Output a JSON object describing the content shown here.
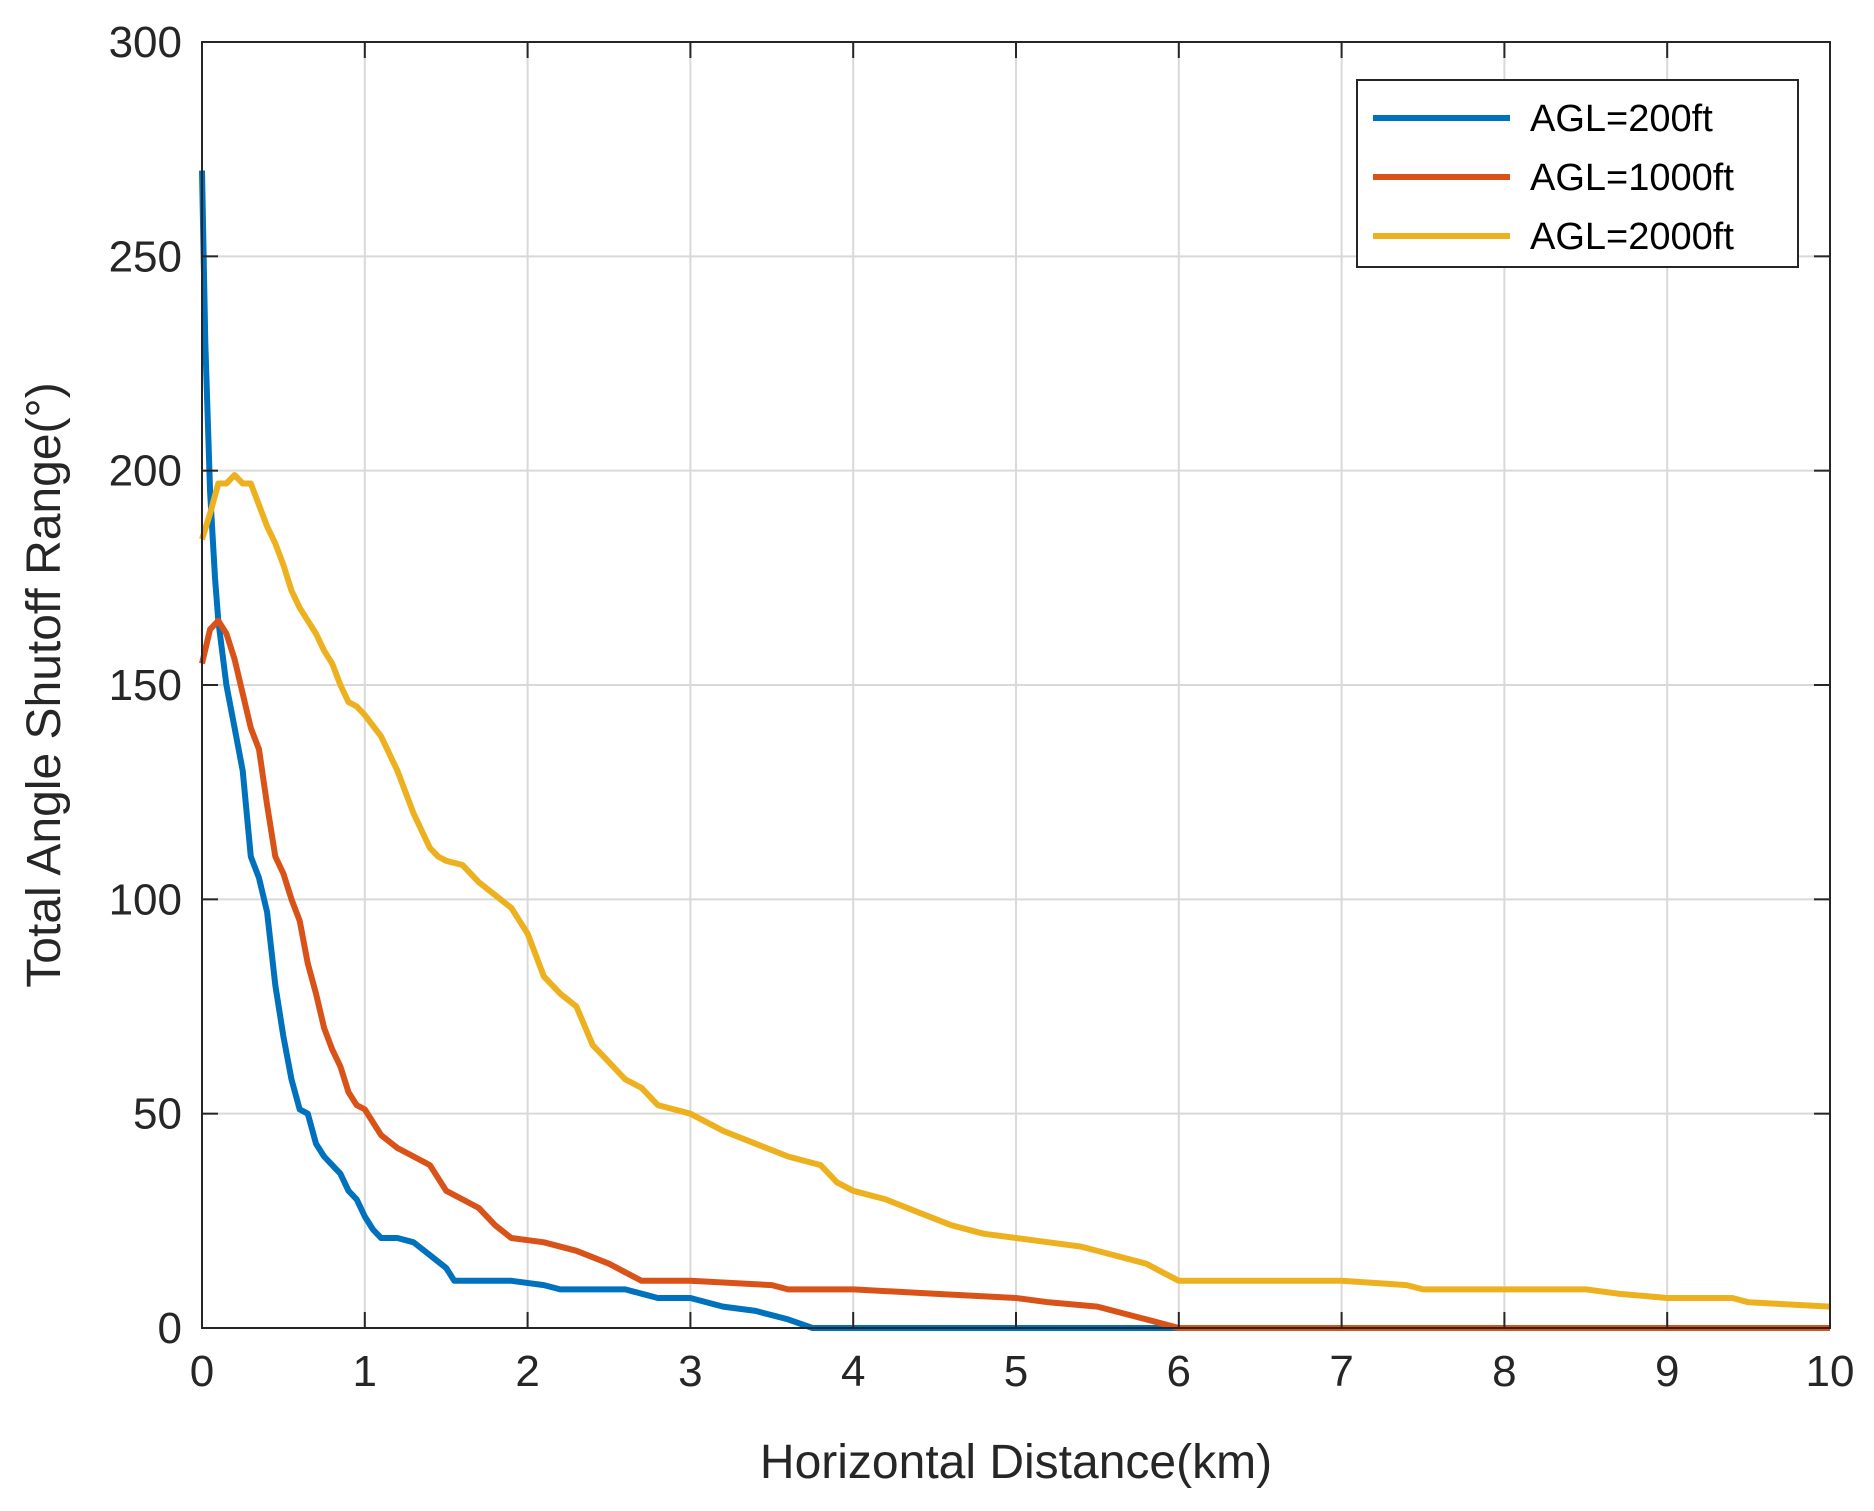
{
  "chart_data": {
    "type": "line",
    "title": "",
    "xlabel": "Horizontal Distance(km)",
    "ylabel": "Total  Angle Shutoff Range(°)",
    "xlim": [
      0,
      10
    ],
    "ylim": [
      0,
      300
    ],
    "xticks": [
      0,
      1,
      2,
      3,
      4,
      5,
      6,
      7,
      8,
      9,
      10
    ],
    "yticks": [
      0,
      50,
      100,
      150,
      200,
      250,
      300
    ],
    "grid": true,
    "legend_position": "top-right",
    "series": [
      {
        "name": "AGL=200ft",
        "color": "#0072BD",
        "x": [
          0,
          0.02,
          0.05,
          0.08,
          0.1,
          0.15,
          0.2,
          0.25,
          0.3,
          0.35,
          0.4,
          0.45,
          0.5,
          0.55,
          0.6,
          0.65,
          0.7,
          0.75,
          0.8,
          0.85,
          0.9,
          0.95,
          1.0,
          1.05,
          1.1,
          1.2,
          1.3,
          1.4,
          1.5,
          1.55,
          1.7,
          1.9,
          2.1,
          2.2,
          2.4,
          2.6,
          2.7,
          2.8,
          3.0,
          3.2,
          3.4,
          3.6,
          3.75,
          3.9,
          4.5,
          5.0,
          5.8,
          6.5,
          7.5,
          8.5,
          10
        ],
        "values": [
          270,
          230,
          195,
          175,
          165,
          150,
          140,
          130,
          110,
          105,
          97,
          80,
          68,
          58,
          51,
          50,
          43,
          40,
          38,
          36,
          32,
          30,
          26,
          23,
          21,
          21,
          20,
          17,
          14,
          11,
          11,
          11,
          10,
          9,
          9,
          9,
          8,
          7,
          7,
          5,
          4,
          2,
          0,
          0,
          0,
          0,
          0,
          0,
          0,
          0,
          0
        ]
      },
      {
        "name": "AGL=1000ft",
        "color": "#D95319",
        "x": [
          0,
          0.05,
          0.1,
          0.15,
          0.2,
          0.25,
          0.3,
          0.35,
          0.4,
          0.45,
          0.5,
          0.55,
          0.6,
          0.65,
          0.7,
          0.75,
          0.8,
          0.85,
          0.9,
          0.95,
          1.0,
          1.1,
          1.2,
          1.3,
          1.4,
          1.5,
          1.6,
          1.7,
          1.8,
          1.9,
          2.1,
          2.3,
          2.5,
          2.6,
          2.7,
          3.0,
          3.5,
          3.6,
          4.0,
          4.5,
          5.0,
          5.2,
          5.5,
          5.7,
          5.9,
          6.0,
          6.5,
          7.5,
          8.5,
          10
        ],
        "values": [
          155,
          163,
          165,
          162,
          156,
          148,
          140,
          135,
          122,
          110,
          106,
          100,
          95,
          85,
          78,
          70,
          65,
          61,
          55,
          52,
          51,
          45,
          42,
          40,
          38,
          32,
          30,
          28,
          24,
          21,
          20,
          18,
          15,
          13,
          11,
          11,
          10,
          9,
          9,
          8,
          7,
          6,
          5,
          3,
          1,
          0,
          0,
          0,
          0,
          0
        ]
      },
      {
        "name": "AGL=2000ft",
        "color": "#EDB120",
        "x": [
          0,
          0.05,
          0.1,
          0.15,
          0.2,
          0.25,
          0.3,
          0.35,
          0.4,
          0.45,
          0.5,
          0.55,
          0.6,
          0.65,
          0.7,
          0.75,
          0.8,
          0.85,
          0.9,
          0.95,
          1.0,
          1.1,
          1.2,
          1.3,
          1.4,
          1.45,
          1.5,
          1.6,
          1.7,
          1.8,
          1.9,
          2.0,
          2.1,
          2.2,
          2.3,
          2.4,
          2.5,
          2.6,
          2.7,
          2.8,
          2.9,
          3.0,
          3.2,
          3.4,
          3.6,
          3.8,
          3.9,
          4.0,
          4.2,
          4.4,
          4.6,
          4.8,
          5.0,
          5.2,
          5.4,
          5.6,
          5.8,
          5.9,
          6.0,
          6.5,
          7.0,
          7.4,
          7.5,
          8.0,
          8.5,
          8.7,
          9.0,
          9.4,
          9.5,
          10
        ],
        "values": [
          184,
          190,
          197,
          197,
          199,
          197,
          197,
          192,
          187,
          183,
          178,
          172,
          168,
          165,
          162,
          158,
          155,
          150,
          146,
          145,
          143,
          138,
          130,
          120,
          112,
          110,
          109,
          108,
          104,
          101,
          98,
          92,
          82,
          78,
          75,
          66,
          62,
          58,
          56,
          52,
          51,
          50,
          46,
          43,
          40,
          38,
          34,
          32,
          30,
          27,
          24,
          22,
          21,
          20,
          19,
          17,
          15,
          13,
          11,
          11,
          11,
          10,
          9,
          9,
          9,
          8,
          7,
          7,
          6,
          5
        ]
      }
    ]
  }
}
